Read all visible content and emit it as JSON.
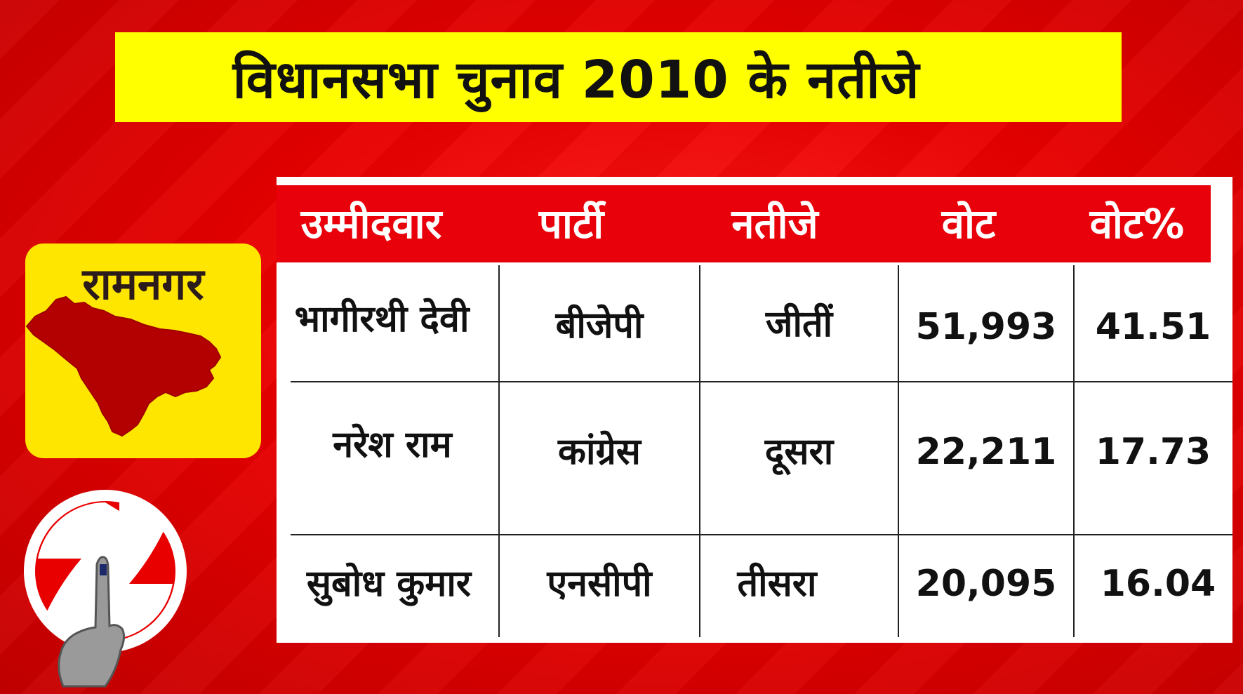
{
  "title": "विधानसभा चुनाव 2010 के नतीजे",
  "constituency": {
    "name": "रामनगर",
    "map_icon": "region-map-icon",
    "map_color": "#b30000",
    "badge_color": "#ffe600"
  },
  "logo": {
    "icon": "election-commission-logo-icon"
  },
  "table": {
    "headers": [
      "उम्मीदवार",
      "पार्टी",
      "नतीजे",
      "वोट",
      "वोट%"
    ],
    "rows": [
      [
        "भागीरथी देवी",
        "बीजेपी",
        "जीतीं",
        "51,993",
        "41.51"
      ],
      [
        "नरेश राम",
        "कांग्रेस",
        "दूसरा",
        "22,211",
        "17.73"
      ],
      [
        "सुबोध कुमार",
        "एनसीपी",
        "तीसरा",
        "20,095",
        "16.04"
      ]
    ],
    "header_color": "#e8000a"
  },
  "colors": {
    "background": "#e80000",
    "title_bar": "#ffff00"
  }
}
